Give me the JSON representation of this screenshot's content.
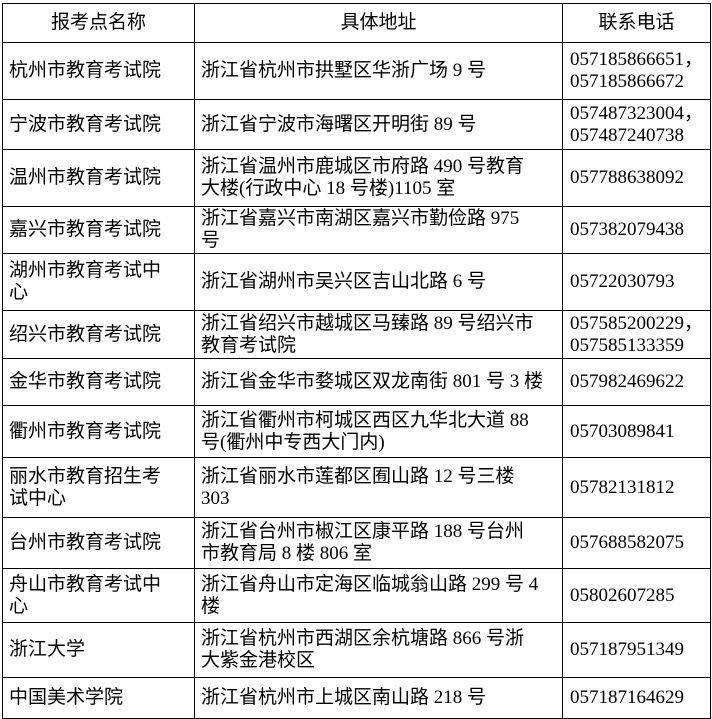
{
  "table": {
    "headers": [
      "报考点名称",
      "具体地址",
      "联系电话"
    ],
    "rows": [
      {
        "name": "杭州市教育考试院",
        "address": "浙江省杭州市拱墅区华浙广场 9 号",
        "phone": "057185866651，\n057185866672"
      },
      {
        "name": "宁波市教育考试院",
        "address": "浙江省宁波市海曙区开明街 89 号",
        "phone": "057487323004，\n057487240738"
      },
      {
        "name": "温州市教育考试院",
        "address": "浙江省温州市鹿城区市府路 490 号教育\n大楼(行政中心 18 号楼)1105 室",
        "phone": "057788638092"
      },
      {
        "name": "嘉兴市教育考试院",
        "address": "浙江省嘉兴市南湖区嘉兴市勤俭路 975\n号",
        "phone": "057382079438"
      },
      {
        "name": "湖州市教育考试中\n心",
        "address": "浙江省湖州市吴兴区吉山北路 6 号",
        "phone": "05722030793"
      },
      {
        "name": "绍兴市教育考试院",
        "address": "浙江省绍兴市越城区马臻路 89 号绍兴市\n教育考试院",
        "phone": "057585200229，\n057585133359"
      },
      {
        "name": "金华市教育考试院",
        "address": "浙江省金华市婺城区双龙南街 801 号 3 楼",
        "phone": "057982469622"
      },
      {
        "name": "衢州市教育考试院",
        "address": "浙江省衢州市柯城区西区九华北大道 88\n号(衢州中专西大门内)",
        "phone": "05703089841"
      },
      {
        "name": "丽水市教育招生考\n试中心",
        "address": "浙江省丽水市莲都区囿山路 12 号三楼\n303",
        "phone": "05782131812"
      },
      {
        "name": "台州市教育考试院",
        "address": "浙江省台州市椒江区康平路 188 号台州\n市教育局 8 楼 806 室",
        "phone": "057688582075"
      },
      {
        "name": "舟山市教育考试中\n心",
        "address": "浙江省舟山市定海区临城翁山路 299 号 4\n楼",
        "phone": "05802607285"
      },
      {
        "name": "浙江大学",
        "address": "浙江省杭州市西湖区余杭塘路 866 号浙\n大紫金港校区",
        "phone": "057187951349"
      },
      {
        "name": "中国美术学院",
        "address": "浙江省杭州市上城区南山路 218 号",
        "phone": "057187164629"
      }
    ]
  }
}
